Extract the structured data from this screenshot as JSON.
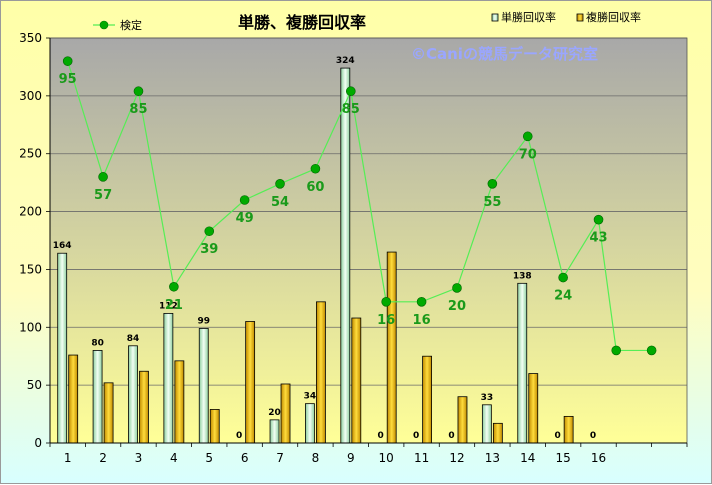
{
  "chart_data": {
    "type": "bar",
    "title": "単勝、複勝回収率",
    "watermark": "©Caniの競馬データ研究室",
    "categories": [
      "1",
      "2",
      "3",
      "4",
      "5",
      "6",
      "7",
      "8",
      "9",
      "10",
      "11",
      "12",
      "13",
      "14",
      "15",
      "16"
    ],
    "ylim": [
      0,
      350
    ],
    "yticks": [
      0,
      50,
      100,
      150,
      200,
      250,
      300,
      350
    ],
    "grid": "horizontal",
    "legend_position": "top",
    "series": [
      {
        "name": "単勝回収率",
        "kind": "bar",
        "color": "#cdeedd",
        "values": [
          164,
          80,
          84,
          112,
          99,
          0,
          20,
          34,
          324,
          0,
          0,
          0,
          33,
          138,
          0,
          0
        ],
        "labels": [
          "164",
          "80",
          "84",
          "112",
          "99",
          "0",
          "20",
          "34",
          "324",
          "0",
          "0",
          "0",
          "33",
          "138",
          "0",
          "0"
        ]
      },
      {
        "name": "複勝回収率",
        "kind": "bar",
        "color": "#f0b800",
        "values": [
          76,
          52,
          62,
          71,
          29,
          105,
          51,
          122,
          108,
          165,
          75,
          40,
          17,
          60,
          23,
          0
        ]
      },
      {
        "name": "検定",
        "kind": "line",
        "color": "#55ee55",
        "marker_color": "#00aa00",
        "x": [
          1,
          2,
          3,
          4,
          5,
          6,
          7,
          8,
          9,
          10,
          11,
          12,
          13,
          14,
          15,
          16,
          16.5,
          17.5
        ],
        "values": [
          330,
          230,
          304,
          135,
          183,
          210,
          224,
          237,
          304,
          122,
          122,
          134,
          224,
          265,
          143,
          193,
          80,
          80
        ],
        "labels": [
          "95",
          "57",
          "85",
          "21",
          "39",
          "49",
          "54",
          "60",
          "85",
          "16",
          "16",
          "20",
          "55",
          "70",
          "24",
          "43",
          "",
          ""
        ]
      }
    ]
  },
  "colors": {
    "plot_top": "#a9a9a9",
    "plot_bottom": "#ffff99",
    "grid": "#6a6a6a",
    "line_label": "#1a9a1a"
  }
}
